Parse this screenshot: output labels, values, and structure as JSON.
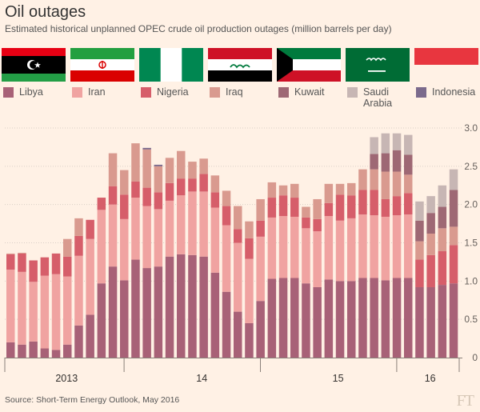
{
  "title": "Oil outages",
  "subtitle": "Estimated historical unplanned OPEC crude oil production outages (million barrels per day)",
  "source": "Source: Short-Term Energy Outlook, May 2016",
  "logo": "FT",
  "flags": [
    {
      "name": "libya-flag"
    },
    {
      "name": "iran-flag"
    },
    {
      "name": "nigeria-flag"
    },
    {
      "name": "iraq-flag"
    },
    {
      "name": "kuwait-flag"
    },
    {
      "name": "saudi-arabia-flag"
    },
    {
      "name": "indonesia-flag"
    }
  ],
  "legend": [
    {
      "label": "Libya",
      "color": "#a86177"
    },
    {
      "label": "Iran",
      "color": "#f0a3a1"
    },
    {
      "label": "Nigeria",
      "color": "#d65e6a"
    },
    {
      "label": "Iraq",
      "color": "#d99a8f"
    },
    {
      "label": "Kuwait",
      "color": "#9e6874"
    },
    {
      "label": "Saudi Arabia",
      "color": "#c7b6b4"
    },
    {
      "label": "Indonesia",
      "color": "#7b6a8c"
    }
  ],
  "chart_data": {
    "type": "bar",
    "stacked": true,
    "ylim": [
      0,
      3.0
    ],
    "yticks": [
      "0",
      "0.5",
      "1.0",
      "1.5",
      "2.0",
      "2.5",
      "3.0"
    ],
    "xtick_labels": [
      "2013",
      "14",
      "15",
      "16"
    ],
    "series": [
      {
        "name": "Libya",
        "values": [
          0.2,
          0.17,
          0.21,
          0.12,
          0.1,
          0.17,
          0.42,
          0.56,
          0.97,
          1.19,
          1.01,
          1.28,
          1.17,
          1.19,
          1.32,
          1.35,
          1.34,
          1.32,
          1.11,
          0.86,
          0.6,
          0.45,
          0.74,
          1.03,
          1.04,
          1.04,
          0.97,
          0.92,
          1.02,
          1.0,
          1.0,
          1.04,
          1.04,
          1.01,
          1.04,
          1.04,
          0.92,
          0.92,
          0.95,
          0.97
        ]
      },
      {
        "name": "Iran",
        "values": [
          0.95,
          0.95,
          0.78,
          0.95,
          0.99,
          0.89,
          0.91,
          0.99,
          0.96,
          0.81,
          0.8,
          0.81,
          0.81,
          0.75,
          0.73,
          0.77,
          0.83,
          0.85,
          0.85,
          0.87,
          0.9,
          0.84,
          0.84,
          0.8,
          0.81,
          0.8,
          0.72,
          0.73,
          0.83,
          0.79,
          0.82,
          0.83,
          0.82,
          0.83,
          0.82,
          0.83,
          0.0,
          0.0,
          0.0,
          0.0
        ]
      },
      {
        "name": "Nigeria",
        "values": [
          0.2,
          0.24,
          0.28,
          0.24,
          0.27,
          0.26,
          0.26,
          0.25,
          0.16,
          0.24,
          0.32,
          0.21,
          0.24,
          0.22,
          0.23,
          0.22,
          0.17,
          0.23,
          0.2,
          0.25,
          0.18,
          0.27,
          0.21,
          0.26,
          0.27,
          0.25,
          0.14,
          0.16,
          0.17,
          0.34,
          0.3,
          0.32,
          0.33,
          0.23,
          0.25,
          0.28,
          0.36,
          0.42,
          0.44,
          0.5
        ]
      },
      {
        "name": "Iraq",
        "values": [
          0.01,
          0.01,
          0.0,
          0.0,
          0.0,
          0.23,
          0.23,
          0.0,
          0.0,
          0.43,
          0.32,
          0.5,
          0.5,
          0.34,
          0.33,
          0.36,
          0.22,
          0.2,
          0.22,
          0.2,
          0.3,
          0.22,
          0.28,
          0.2,
          0.13,
          0.18,
          0.14,
          0.26,
          0.25,
          0.14,
          0.16,
          0.27,
          0.27,
          0.36,
          0.32,
          0.24,
          0.24,
          0.28,
          0.3,
          0.24
        ]
      },
      {
        "name": "Kuwait",
        "values": [
          0,
          0,
          0,
          0,
          0,
          0,
          0,
          0,
          0,
          0,
          0,
          0,
          0,
          0,
          0,
          0,
          0,
          0,
          0,
          0,
          0,
          0,
          0,
          0,
          0,
          0,
          0,
          0,
          0,
          0,
          0,
          0,
          0.2,
          0.24,
          0.28,
          0.26,
          0.27,
          0.27,
          0.28,
          0.48
        ]
      },
      {
        "name": "Saudi Arabia",
        "values": [
          0,
          0,
          0,
          0,
          0,
          0,
          0,
          0,
          0,
          0,
          0,
          0,
          0,
          0,
          0,
          0,
          0,
          0,
          0,
          0,
          0,
          0,
          0,
          0,
          0,
          0,
          0,
          0,
          0,
          0,
          0,
          0,
          0.22,
          0.26,
          0.22,
          0.26,
          0.25,
          0.22,
          0.28,
          0.27
        ]
      },
      {
        "name": "Indonesia",
        "values": [
          0,
          0,
          0,
          0,
          0,
          0,
          0,
          0,
          0,
          0,
          0,
          0,
          0.02,
          0.02,
          0,
          0,
          0,
          0,
          0,
          0,
          0,
          0,
          0,
          0,
          0,
          0,
          0,
          0,
          0,
          0,
          0,
          0,
          0,
          0,
          0,
          0,
          0,
          0,
          0,
          0
        ]
      }
    ]
  }
}
